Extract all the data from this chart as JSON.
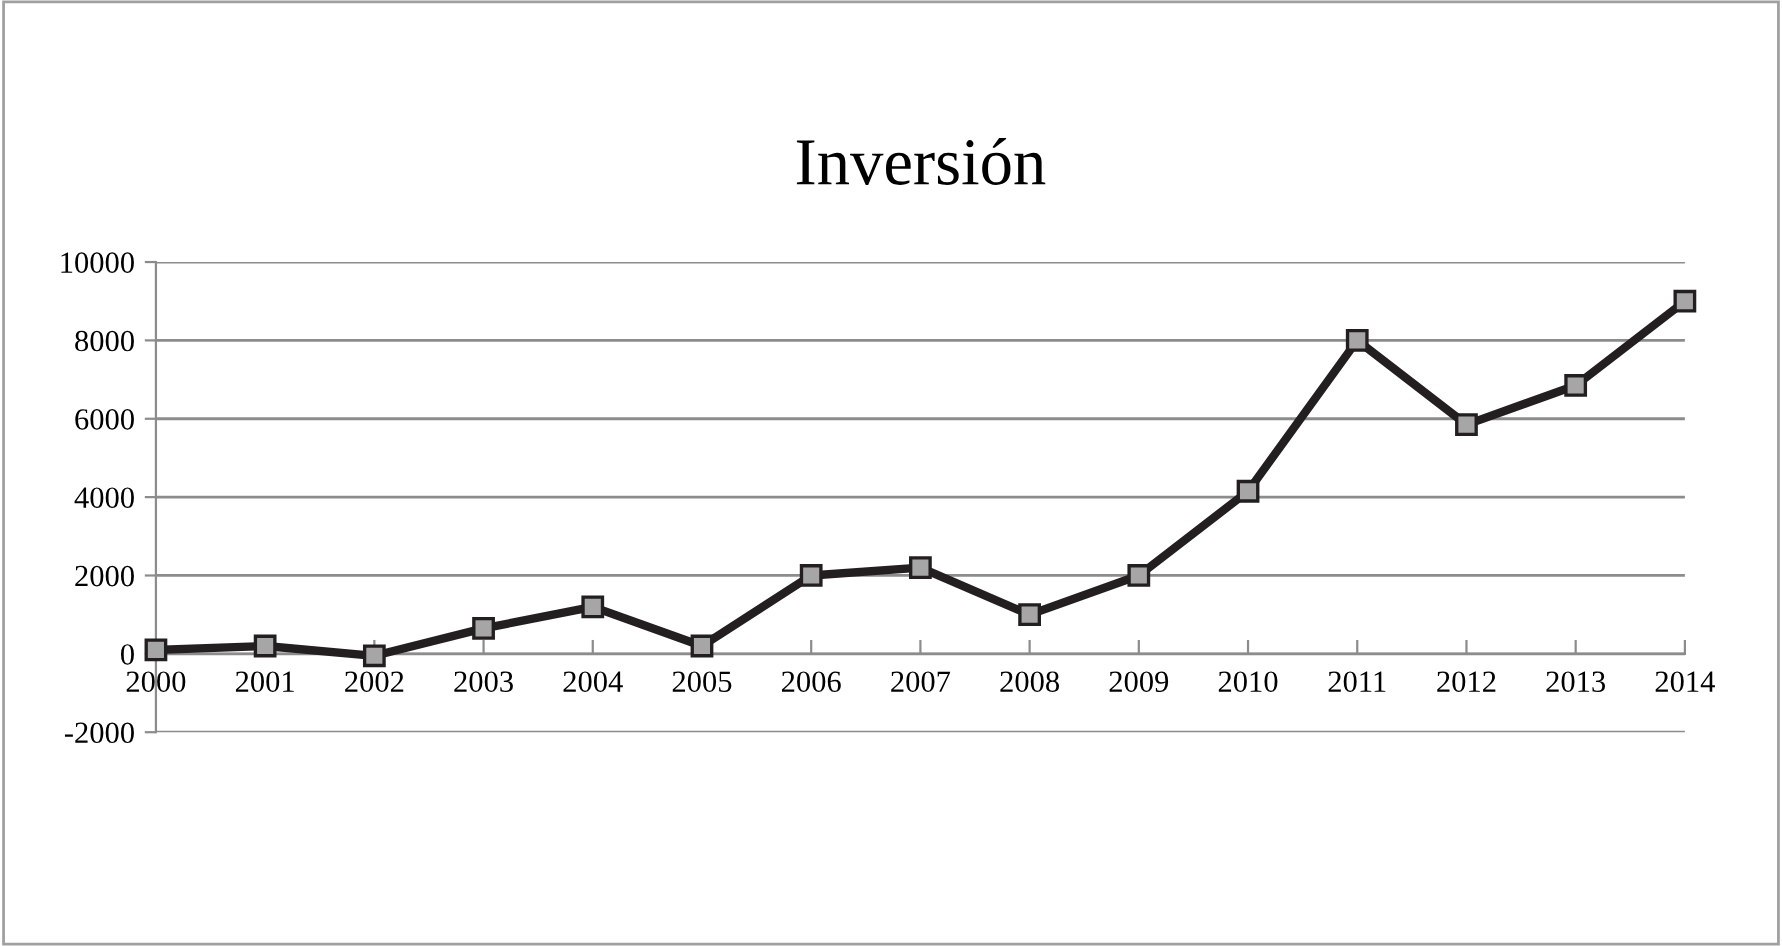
{
  "chart_data": {
    "type": "line",
    "title": "Inversión",
    "categories": [
      "2000",
      "2001",
      "2002",
      "2003",
      "2004",
      "2005",
      "2006",
      "2007",
      "2008",
      "2009",
      "2010",
      "2011",
      "2012",
      "2013",
      "2014"
    ],
    "series": [
      {
        "color": "#231f20",
        "values": [
          100,
          200,
          -50,
          650,
          1200,
          200,
          2000,
          2200,
          1000,
          2000,
          4150,
          8000,
          5850,
          6850,
          9000
        ]
      }
    ],
    "ylim": [
      -2000,
      10000
    ],
    "yticks": [
      -2000,
      0,
      2000,
      4000,
      6000,
      8000,
      10000
    ],
    "grid": "y",
    "marker": "square",
    "line_style": "solid",
    "legend": false
  }
}
